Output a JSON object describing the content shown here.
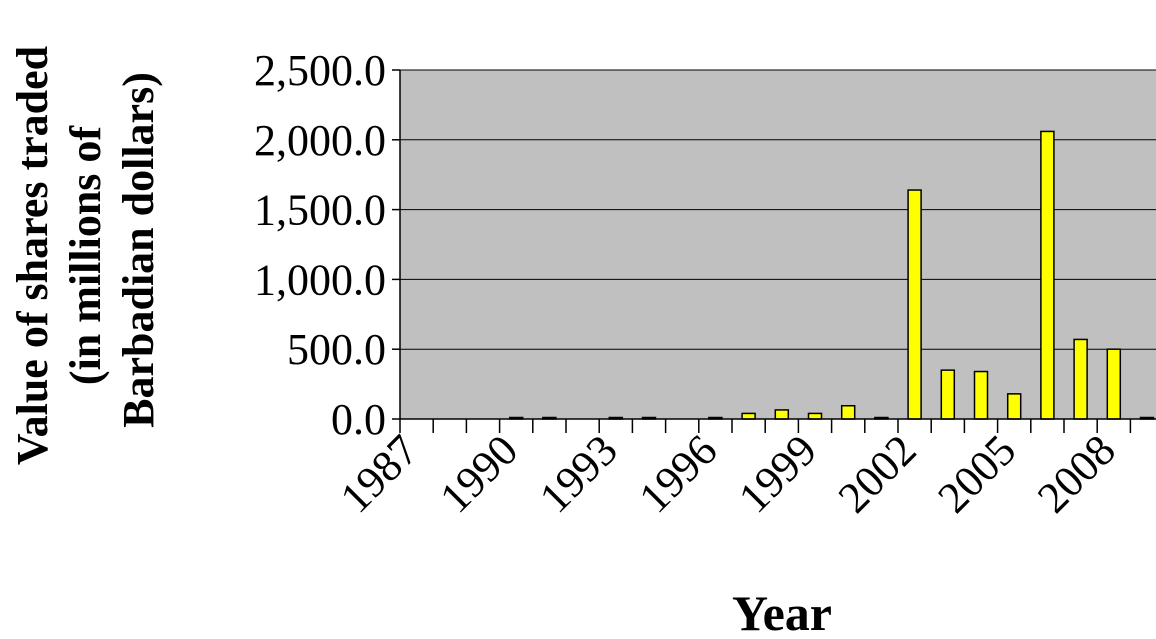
{
  "chart_data": {
    "type": "bar",
    "title": "",
    "xlabel": "Year",
    "ylabel_lines": [
      "Value of shares traded",
      "(in millions of",
      "Barbadian dollars)"
    ],
    "ylim": [
      0,
      2500
    ],
    "yticks": [
      0,
      500,
      1000,
      1500,
      2000,
      2500
    ],
    "ytick_labels": [
      "0.0",
      "500.0",
      "1,000.0",
      "1,500.0",
      "2,000.0",
      "2,500.0"
    ],
    "x_tick_labels": [
      "1987",
      "1990",
      "1993",
      "1996",
      "1999",
      "2002",
      "2005",
      "2008"
    ],
    "x_tick_label_every": 3,
    "categories": [
      "1987",
      "1988",
      "1989",
      "1990",
      "1991",
      "1992",
      "1993",
      "1994",
      "1995",
      "1996",
      "1997",
      "1998",
      "1999",
      "2000",
      "2001",
      "2002",
      "2003",
      "2004",
      "2005",
      "2006",
      "2007",
      "2008",
      "2009",
      "2010"
    ],
    "values": [
      0,
      0,
      0,
      5,
      5,
      0,
      5,
      5,
      0,
      5,
      40,
      65,
      40,
      95,
      5,
      1640,
      350,
      340,
      180,
      2060,
      570,
      500,
      5,
      5
    ],
    "grid": true,
    "legend": "none",
    "colors": {
      "bar_fill": "#ffff00",
      "bar_stroke": "#000000",
      "plot_bg": "#c0c0c0",
      "gridline": "#000000"
    }
  }
}
